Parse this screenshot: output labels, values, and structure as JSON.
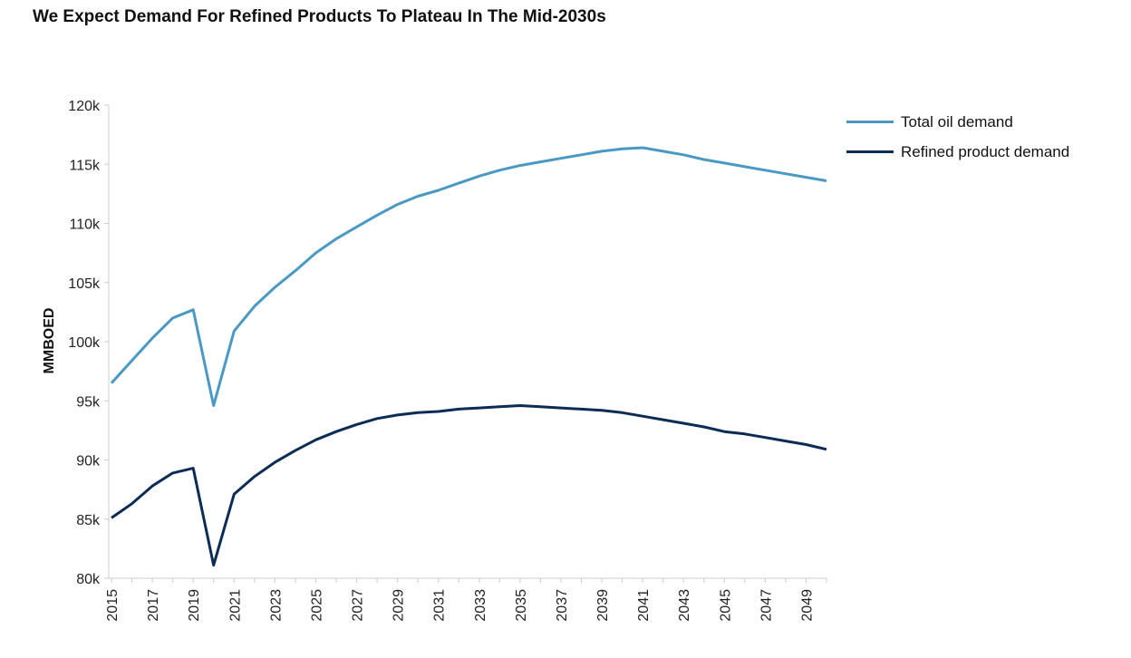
{
  "title": "We Expect Demand For Refined Products To Plateau In The Mid-2030s",
  "chart_data": {
    "type": "line",
    "title": "We Expect Demand For Refined Products To Plateau In The Mid-2030s",
    "xlabel": "",
    "ylabel": "MMBOED",
    "x": [
      2015,
      2016,
      2017,
      2018,
      2019,
      2020,
      2021,
      2022,
      2023,
      2024,
      2025,
      2026,
      2027,
      2028,
      2029,
      2030,
      2031,
      2032,
      2033,
      2034,
      2035,
      2036,
      2037,
      2038,
      2039,
      2040,
      2041,
      2042,
      2043,
      2044,
      2045,
      2046,
      2047,
      2048,
      2049,
      2050
    ],
    "xticks": [
      "2015",
      "2017",
      "2019",
      "2021",
      "2023",
      "2025",
      "2027",
      "2029",
      "2031",
      "2033",
      "2035",
      "2037",
      "2039",
      "2041",
      "2043",
      "2045",
      "2047",
      "2049"
    ],
    "ylim": [
      80000,
      120000
    ],
    "yticks": [
      "80k",
      "85k",
      "90k",
      "95k",
      "100k",
      "105k",
      "110k",
      "115k",
      "120k"
    ],
    "yticks_values": [
      80000,
      85000,
      90000,
      95000,
      100000,
      105000,
      110000,
      115000,
      120000
    ],
    "grid": false,
    "legend_position": "top-right",
    "series": [
      {
        "name": "Total oil demand",
        "color": "#4a98c4",
        "values": [
          96500,
          98400,
          100300,
          102000,
          102700,
          94600,
          100900,
          103000,
          104600,
          106000,
          107500,
          108700,
          109700,
          110700,
          111600,
          112300,
          112800,
          113400,
          114000,
          114500,
          114900,
          115200,
          115500,
          115800,
          116100,
          116300,
          116400,
          116100,
          115800,
          115400,
          115100,
          114800,
          114500,
          114200,
          113900,
          113600
        ]
      },
      {
        "name": "Refined product demand",
        "color": "#0c2c56",
        "values": [
          85100,
          86300,
          87800,
          88900,
          89300,
          81100,
          87100,
          88600,
          89800,
          90800,
          91700,
          92400,
          93000,
          93500,
          93800,
          94000,
          94100,
          94300,
          94400,
          94500,
          94600,
          94500,
          94400,
          94300,
          94200,
          94000,
          93700,
          93400,
          93100,
          92800,
          92400,
          92200,
          91900,
          91600,
          91300,
          90900
        ]
      }
    ]
  }
}
